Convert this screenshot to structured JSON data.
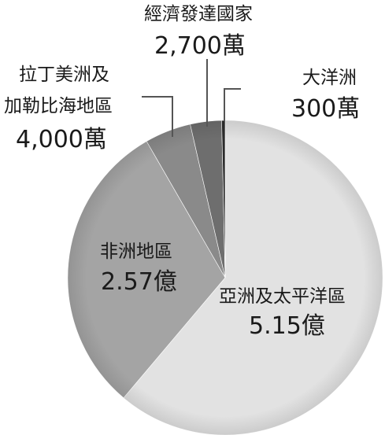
{
  "chart_data": {
    "type": "pie",
    "title": "",
    "categories": [
      "亞洲及太平洋區",
      "非洲地區",
      "拉丁美洲及加勒比海地區",
      "經濟發達國家",
      "大洋洲"
    ],
    "values": [
      515000000,
      257000000,
      40000000,
      27000000,
      3000000
    ],
    "value_labels": [
      "5.15億",
      "2.57億",
      "4,000萬",
      "2,700萬",
      "300萬"
    ],
    "label_lines": {
      "latam": [
        "拉丁美洲及",
        "加勒比海地區"
      ]
    },
    "colors": [
      "#e2e2e2",
      "#a4a4a4",
      "#8a8a8a",
      "#6e6e6e",
      "#2c2c2c"
    ],
    "legend": "none"
  }
}
